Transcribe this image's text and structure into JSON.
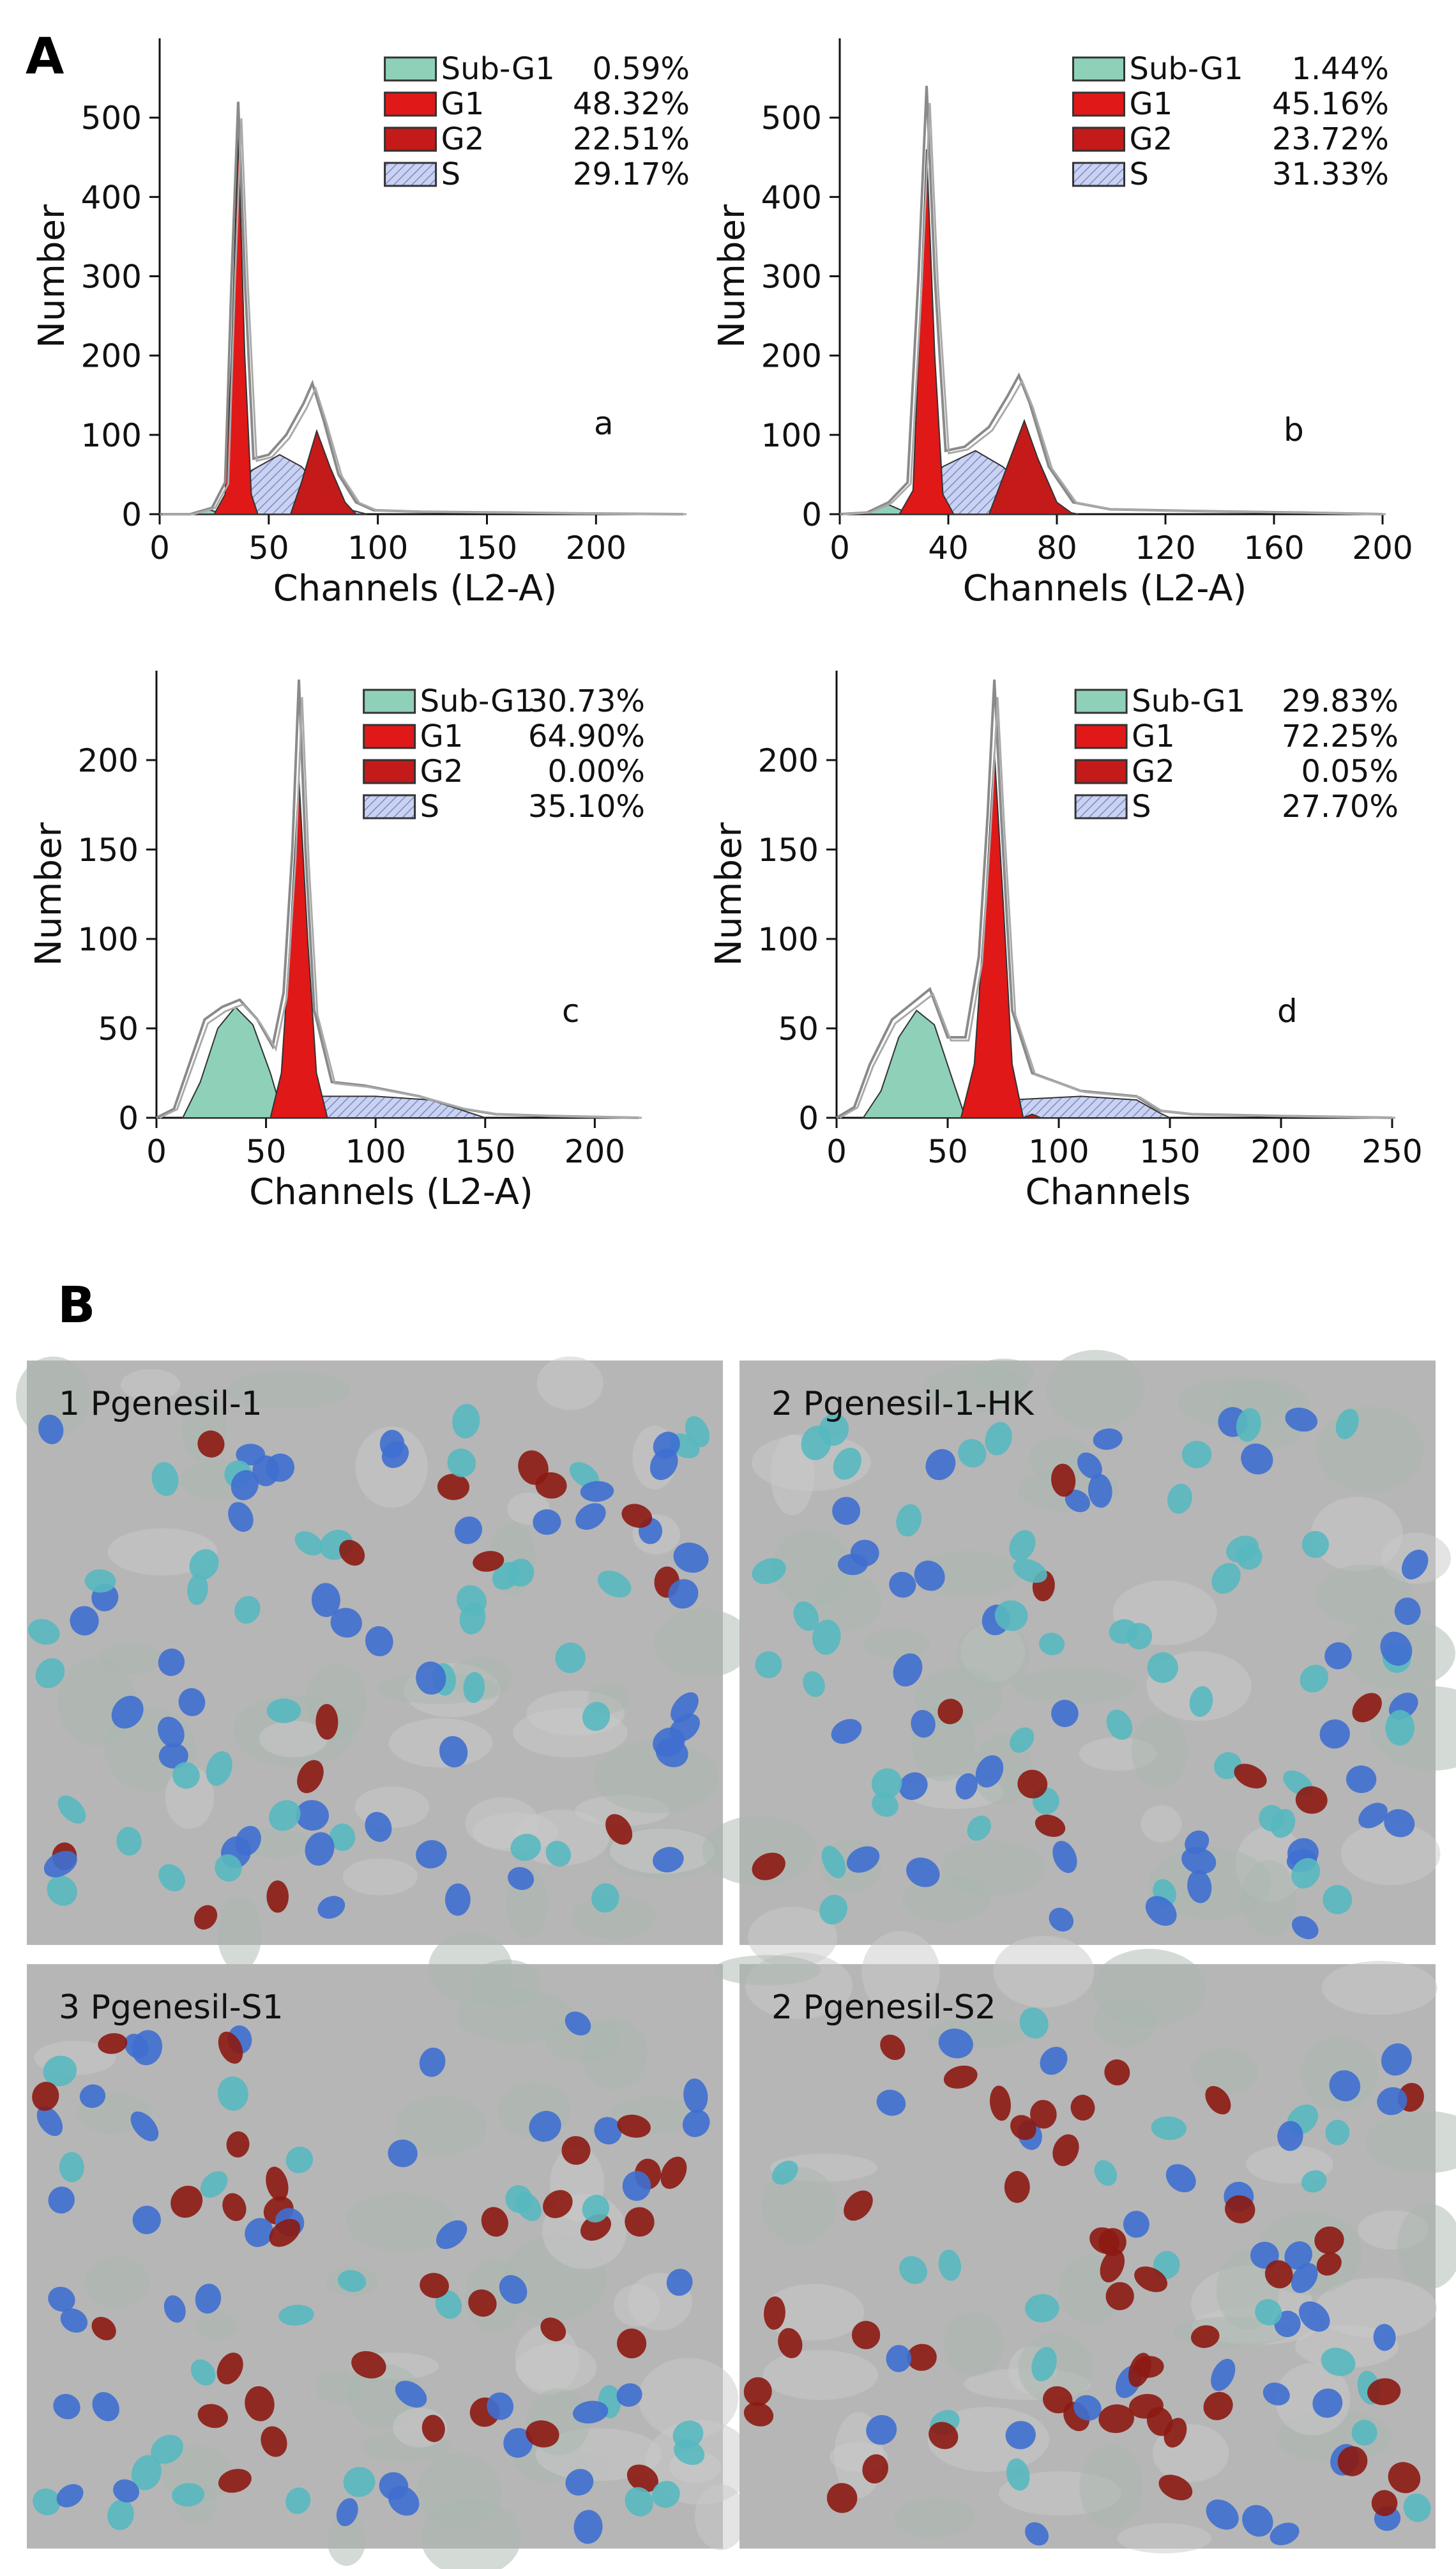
{
  "panel_labels": {
    "a": "A",
    "b": "B"
  },
  "colors": {
    "sub_g1": "#8ed1b8",
    "g1": "#e01818",
    "g2": "#c41a1a",
    "s": "#c9d2f0",
    "s_hatch": "#7d88c8",
    "outline": "#8a8a8a",
    "micro_bg": "#b6b6b6",
    "nucleus_blue": "#3f6fd0",
    "nucleus_teal": "#58b8c0",
    "nucleus_red": "#8c1a12"
  },
  "chart_data": [
    {
      "type": "area",
      "letter": "a",
      "xlabel": "Channels (L2-A)",
      "ylabel": "Number",
      "xlim": [
        0,
        240
      ],
      "ylim": [
        0,
        600
      ],
      "xticks": [
        0,
        50,
        100,
        150,
        200
      ],
      "yticks": [
        0,
        100,
        200,
        300,
        400,
        500
      ],
      "legend": [
        {
          "name": "Sub-G1",
          "value": "0.59%"
        },
        {
          "name": "G1",
          "value": "48.32%"
        },
        {
          "name": "G2",
          "value": "22.51%"
        },
        {
          "name": "S",
          "value": "29.17%"
        }
      ],
      "series": [
        {
          "name": "Sub-G1",
          "points": [
            [
              14,
              0
            ],
            [
              22,
              6
            ],
            [
              30,
              0
            ]
          ]
        },
        {
          "name": "G1",
          "points": [
            [
              25,
              0
            ],
            [
              30,
              25
            ],
            [
              33,
              200
            ],
            [
              36,
              480
            ],
            [
              39,
              200
            ],
            [
              42,
              25
            ],
            [
              45,
              0
            ]
          ]
        },
        {
          "name": "G2",
          "points": [
            [
              60,
              0
            ],
            [
              65,
              40
            ],
            [
              72,
              105
            ],
            [
              78,
              60
            ],
            [
              85,
              15
            ],
            [
              90,
              0
            ]
          ]
        },
        {
          "name": "S",
          "points": [
            [
              30,
              0
            ],
            [
              42,
              55
            ],
            [
              55,
              75
            ],
            [
              65,
              60
            ],
            [
              75,
              30
            ],
            [
              88,
              5
            ],
            [
              95,
              0
            ]
          ]
        },
        {
          "name": "histogram",
          "points": [
            [
              0,
              0
            ],
            [
              14,
              0
            ],
            [
              24,
              8
            ],
            [
              30,
              40
            ],
            [
              33,
              300
            ],
            [
              36,
              520
            ],
            [
              39,
              300
            ],
            [
              43,
              70
            ],
            [
              50,
              75
            ],
            [
              58,
              100
            ],
            [
              66,
              140
            ],
            [
              70,
              165
            ],
            [
              75,
              120
            ],
            [
              82,
              50
            ],
            [
              90,
              15
            ],
            [
              98,
              5
            ],
            [
              120,
              3
            ],
            [
              160,
              2
            ],
            [
              190,
              1
            ],
            [
              240,
              0
            ]
          ]
        }
      ]
    },
    {
      "type": "area",
      "letter": "b",
      "xlabel": "Channels (L2-A)",
      "ylabel": "Number",
      "xlim": [
        0,
        200
      ],
      "ylim": [
        0,
        600
      ],
      "xticks": [
        0,
        40,
        80,
        120,
        160,
        200
      ],
      "yticks": [
        0,
        100,
        200,
        300,
        400,
        500
      ],
      "legend": [
        {
          "name": "Sub-G1",
          "value": "1.44%"
        },
        {
          "name": "G1",
          "value": "45.16%"
        },
        {
          "name": "G2",
          "value": "23.72%"
        },
        {
          "name": "S",
          "value": "31.33%"
        }
      ],
      "series": [
        {
          "name": "Sub-G1",
          "points": [
            [
              10,
              0
            ],
            [
              18,
              12
            ],
            [
              26,
              0
            ]
          ]
        },
        {
          "name": "G1",
          "points": [
            [
              22,
              0
            ],
            [
              27,
              30
            ],
            [
              29,
              200
            ],
            [
              32,
              460
            ],
            [
              35,
              200
            ],
            [
              38,
              25
            ],
            [
              42,
              0
            ]
          ]
        },
        {
          "name": "G2",
          "points": [
            [
              55,
              0
            ],
            [
              60,
              45
            ],
            [
              68,
              118
            ],
            [
              73,
              70
            ],
            [
              80,
              15
            ],
            [
              86,
              0
            ]
          ]
        },
        {
          "name": "S",
          "points": [
            [
              25,
              0
            ],
            [
              38,
              60
            ],
            [
              50,
              80
            ],
            [
              60,
              60
            ],
            [
              70,
              30
            ],
            [
              80,
              5
            ],
            [
              88,
              0
            ]
          ]
        },
        {
          "name": "histogram",
          "points": [
            [
              0,
              0
            ],
            [
              10,
              2
            ],
            [
              18,
              15
            ],
            [
              25,
              40
            ],
            [
              29,
              300
            ],
            [
              32,
              540
            ],
            [
              35,
              300
            ],
            [
              39,
              80
            ],
            [
              46,
              85
            ],
            [
              55,
              110
            ],
            [
              62,
              150
            ],
            [
              66,
              175
            ],
            [
              70,
              140
            ],
            [
              77,
              60
            ],
            [
              86,
              15
            ],
            [
              100,
              6
            ],
            [
              130,
              4
            ],
            [
              170,
              2
            ],
            [
              200,
              0
            ]
          ]
        }
      ]
    },
    {
      "type": "area",
      "letter": "c",
      "xlabel": "Channels (L2-A)",
      "ylabel": "Number",
      "xlim": [
        0,
        220
      ],
      "ylim": [
        0,
        250
      ],
      "xticks": [
        0,
        50,
        100,
        150,
        200
      ],
      "yticks": [
        0,
        50,
        100,
        150,
        200
      ],
      "legend": [
        {
          "name": "Sub-G1",
          "value": "30.73%"
        },
        {
          "name": "G1",
          "value": "64.90%"
        },
        {
          "name": "G2",
          "value": "0.00%"
        },
        {
          "name": "S",
          "value": "35.10%"
        }
      ],
      "series": [
        {
          "name": "Sub-G1",
          "points": [
            [
              12,
              0
            ],
            [
              20,
              20
            ],
            [
              28,
              50
            ],
            [
              36,
              62
            ],
            [
              44,
              52
            ],
            [
              52,
              25
            ],
            [
              58,
              0
            ]
          ]
        },
        {
          "name": "G1",
          "points": [
            [
              52,
              0
            ],
            [
              57,
              25
            ],
            [
              61,
              100
            ],
            [
              65,
              190
            ],
            [
              69,
              100
            ],
            [
              73,
              25
            ],
            [
              78,
              0
            ]
          ]
        },
        {
          "name": "G2",
          "points": []
        },
        {
          "name": "S",
          "points": [
            [
              62,
              0
            ],
            [
              75,
              12
            ],
            [
              100,
              12
            ],
            [
              125,
              10
            ],
            [
              140,
              4
            ],
            [
              150,
              0
            ]
          ]
        },
        {
          "name": "histogram",
          "points": [
            [
              0,
              0
            ],
            [
              8,
              5
            ],
            [
              15,
              30
            ],
            [
              22,
              55
            ],
            [
              30,
              62
            ],
            [
              38,
              66
            ],
            [
              46,
              55
            ],
            [
              53,
              40
            ],
            [
              58,
              70
            ],
            [
              62,
              150
            ],
            [
              65,
              245
            ],
            [
              68,
              150
            ],
            [
              72,
              60
            ],
            [
              80,
              20
            ],
            [
              95,
              18
            ],
            [
              120,
              12
            ],
            [
              140,
              5
            ],
            [
              155,
              2
            ],
            [
              180,
              1
            ],
            [
              220,
              0
            ]
          ]
        }
      ]
    },
    {
      "type": "area",
      "letter": "d",
      "xlabel": "Channels",
      "ylabel": "Number",
      "xlim": [
        0,
        250
      ],
      "ylim": [
        0,
        250
      ],
      "xticks": [
        0,
        50,
        100,
        150,
        200,
        250
      ],
      "yticks": [
        0,
        50,
        100,
        150,
        200
      ],
      "legend": [
        {
          "name": "Sub-G1",
          "value": "29.83%"
        },
        {
          "name": "G1",
          "value": "72.25%"
        },
        {
          "name": "G2",
          "value": "0.05%"
        },
        {
          "name": "S",
          "value": "27.70%"
        }
      ],
      "series": [
        {
          "name": "Sub-G1",
          "points": [
            [
              12,
              0
            ],
            [
              20,
              15
            ],
            [
              28,
              45
            ],
            [
              36,
              60
            ],
            [
              44,
              52
            ],
            [
              52,
              22
            ],
            [
              58,
              0
            ]
          ]
        },
        {
          "name": "G1",
          "points": [
            [
              56,
              0
            ],
            [
              62,
              30
            ],
            [
              67,
              120
            ],
            [
              71,
              205
            ],
            [
              75,
              120
            ],
            [
              79,
              30
            ],
            [
              84,
              0
            ]
          ]
        },
        {
          "name": "G2",
          "points": [
            [
              84,
              0
            ],
            [
              88,
              2
            ],
            [
              92,
              0
            ]
          ]
        },
        {
          "name": "S",
          "points": [
            [
              64,
              0
            ],
            [
              78,
              10
            ],
            [
              110,
              12
            ],
            [
              135,
              10
            ],
            [
              145,
              3
            ],
            [
              150,
              0
            ]
          ]
        },
        {
          "name": "histogram",
          "points": [
            [
              0,
              0
            ],
            [
              8,
              6
            ],
            [
              15,
              30
            ],
            [
              25,
              55
            ],
            [
              35,
              65
            ],
            [
              42,
              72
            ],
            [
              50,
              45
            ],
            [
              58,
              45
            ],
            [
              64,
              90
            ],
            [
              68,
              170
            ],
            [
              71,
              245
            ],
            [
              74,
              170
            ],
            [
              79,
              60
            ],
            [
              88,
              25
            ],
            [
              110,
              15
            ],
            [
              135,
              12
            ],
            [
              145,
              4
            ],
            [
              160,
              2
            ],
            [
              200,
              1
            ],
            [
              250,
              0
            ]
          ]
        }
      ]
    }
  ],
  "micrographs": [
    {
      "label": "1 Pgenesil-1",
      "red_frac": 0.1,
      "seed": 11
    },
    {
      "label": "2 Pgenesil-1-HK",
      "red_frac": 0.16,
      "seed": 23
    },
    {
      "label": "3 Pgenesil-S1",
      "red_frac": 0.38,
      "seed": 37
    },
    {
      "label": "2 Pgenesil-S2",
      "red_frac": 0.45,
      "seed": 51
    }
  ]
}
